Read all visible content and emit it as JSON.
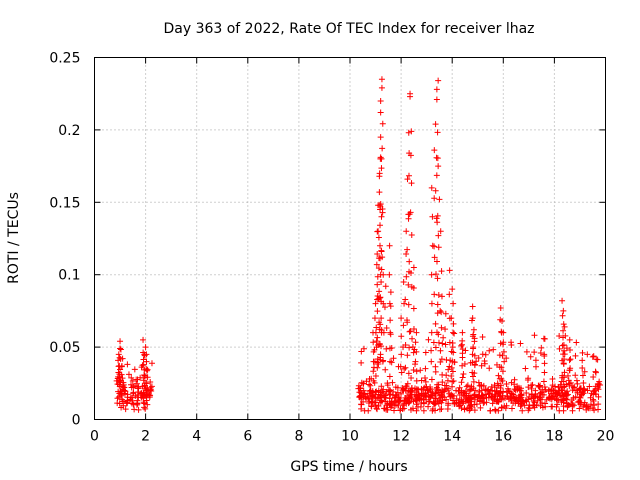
{
  "chart_data": {
    "type": "scatter",
    "title": "Day 363 of 2022, Rate Of TEC Index for receiver lhaz",
    "xlabel": "GPS time / hours",
    "ylabel": "ROTI / TECUs",
    "xlim": [
      0,
      20
    ],
    "ylim": [
      0,
      0.25
    ],
    "xticks": [
      0,
      2,
      4,
      6,
      8,
      10,
      12,
      14,
      16,
      18,
      20
    ],
    "yticks": [
      0,
      0.05,
      0.1,
      0.15,
      0.2,
      0.25
    ],
    "grid": true,
    "marker": "+",
    "series": [
      {
        "name": "ROTI",
        "color": "#ff0000",
        "clusters": [
          {
            "x_start": 0.85,
            "x_end": 2.25,
            "y_base": 0.018,
            "y_spread": 0.012,
            "y_max": 0.055
          },
          {
            "x_start": 10.3,
            "x_end": 19.8,
            "y_base": 0.016,
            "y_spread": 0.012,
            "y_max": 0.08
          }
        ],
        "spikes": [
          {
            "x": 1.0,
            "y": 0.054
          },
          {
            "x": 1.0,
            "y": 0.049
          },
          {
            "x": 0.95,
            "y": 0.045
          },
          {
            "x": 1.1,
            "y": 0.042
          },
          {
            "x": 1.9,
            "y": 0.055
          },
          {
            "x": 2.0,
            "y": 0.05
          },
          {
            "x": 1.95,
            "y": 0.045
          },
          {
            "x": 10.9,
            "y": 0.06
          },
          {
            "x": 11.0,
            "y": 0.08
          },
          {
            "x": 11.05,
            "y": 0.107
          },
          {
            "x": 11.1,
            "y": 0.13
          },
          {
            "x": 11.1,
            "y": 0.148
          },
          {
            "x": 11.15,
            "y": 0.157
          },
          {
            "x": 11.15,
            "y": 0.168
          },
          {
            "x": 11.2,
            "y": 0.181
          },
          {
            "x": 11.2,
            "y": 0.195
          },
          {
            "x": 11.2,
            "y": 0.212
          },
          {
            "x": 11.2,
            "y": 0.22
          },
          {
            "x": 11.25,
            "y": 0.229
          },
          {
            "x": 11.25,
            "y": 0.235
          },
          {
            "x": 11.3,
            "y": 0.1
          },
          {
            "x": 11.4,
            "y": 0.092
          },
          {
            "x": 11.55,
            "y": 0.12
          },
          {
            "x": 11.6,
            "y": 0.088
          },
          {
            "x": 12.0,
            "y": 0.07
          },
          {
            "x": 12.1,
            "y": 0.095
          },
          {
            "x": 12.2,
            "y": 0.13
          },
          {
            "x": 12.25,
            "y": 0.166
          },
          {
            "x": 12.3,
            "y": 0.198
          },
          {
            "x": 12.35,
            "y": 0.223
          },
          {
            "x": 12.35,
            "y": 0.225
          },
          {
            "x": 12.4,
            "y": 0.199
          },
          {
            "x": 12.5,
            "y": 0.105
          },
          {
            "x": 12.6,
            "y": 0.06
          },
          {
            "x": 13.2,
            "y": 0.16
          },
          {
            "x": 13.3,
            "y": 0.186
          },
          {
            "x": 13.35,
            "y": 0.204
          },
          {
            "x": 13.4,
            "y": 0.221
          },
          {
            "x": 13.4,
            "y": 0.228
          },
          {
            "x": 13.45,
            "y": 0.234
          },
          {
            "x": 13.45,
            "y": 0.175
          },
          {
            "x": 13.5,
            "y": 0.152
          },
          {
            "x": 13.55,
            "y": 0.13
          },
          {
            "x": 13.6,
            "y": 0.085
          },
          {
            "x": 13.75,
            "y": 0.073
          },
          {
            "x": 13.9,
            "y": 0.103
          },
          {
            "x": 14.0,
            "y": 0.09
          },
          {
            "x": 14.05,
            "y": 0.066
          },
          {
            "x": 14.4,
            "y": 0.06
          },
          {
            "x": 14.8,
            "y": 0.078
          },
          {
            "x": 14.8,
            "y": 0.07
          },
          {
            "x": 14.85,
            "y": 0.062
          },
          {
            "x": 15.9,
            "y": 0.077
          },
          {
            "x": 15.95,
            "y": 0.068
          },
          {
            "x": 16.0,
            "y": 0.06
          },
          {
            "x": 17.6,
            "y": 0.045
          },
          {
            "x": 18.3,
            "y": 0.082
          },
          {
            "x": 18.35,
            "y": 0.075
          },
          {
            "x": 18.4,
            "y": 0.064
          },
          {
            "x": 18.6,
            "y": 0.055
          },
          {
            "x": 19.1,
            "y": 0.046
          }
        ]
      }
    ]
  }
}
